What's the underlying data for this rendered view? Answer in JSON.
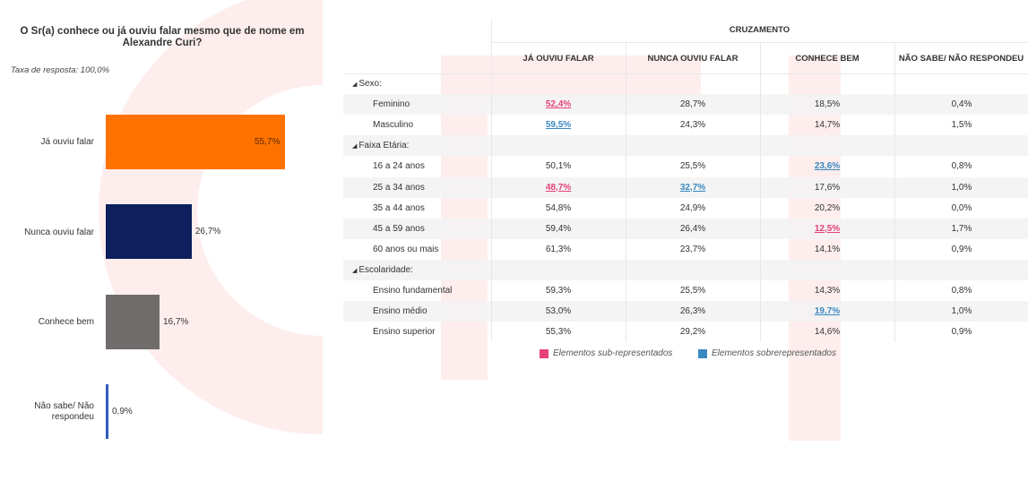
{
  "question": "O Sr(a) conhece ou já ouviu falar mesmo que de nome em Alexandre Curi?",
  "response_rate": "Taxa de resposta: 100,0%",
  "colors": {
    "ja_ouviu": "#ff7200",
    "nunca_ouviu": "#0d1f5c",
    "conhece_bem": "#706c6c",
    "nao_sabe": "#2f5cbf",
    "under": "#e5407a",
    "over": "#3a88c0"
  },
  "chart_data": {
    "type": "bar",
    "orientation": "horizontal",
    "categories": [
      "Já ouviu falar",
      "Nunca ouviu falar",
      "Conhece bem",
      "Não sabe/ Não respondeu"
    ],
    "values": [
      55.7,
      26.7,
      16.7,
      0.9
    ],
    "value_labels": [
      "55,7%",
      "26,7%",
      "16,7%",
      "0,9%"
    ],
    "xlim": [
      0,
      100
    ],
    "grid": false
  },
  "table": {
    "title": "CRUZAMENTO",
    "columns": [
      "JÁ OUVIU FALAR",
      "NUNCA OUVIU FALAR",
      "CONHECE BEM",
      "NÃO SABE/ NÃO RESPONDEU"
    ],
    "groups": [
      {
        "name": "Sexo:",
        "rows": [
          {
            "label": "Feminino",
            "cells": [
              {
                "v": "52,4%",
                "flag": "under"
              },
              {
                "v": "28,7%"
              },
              {
                "v": "18,5%"
              },
              {
                "v": "0,4%"
              }
            ]
          },
          {
            "label": "Masculino",
            "cells": [
              {
                "v": "59,5%",
                "flag": "over"
              },
              {
                "v": "24,3%"
              },
              {
                "v": "14,7%"
              },
              {
                "v": "1,5%"
              }
            ]
          }
        ]
      },
      {
        "name": "Faixa Etária:",
        "rows": [
          {
            "label": "16 a 24 anos",
            "cells": [
              {
                "v": "50,1%"
              },
              {
                "v": "25,5%"
              },
              {
                "v": "23,6%",
                "flag": "over"
              },
              {
                "v": "0,8%"
              }
            ]
          },
          {
            "label": "25 a 34 anos",
            "cells": [
              {
                "v": "48,7%",
                "flag": "under"
              },
              {
                "v": "32,7%",
                "flag": "over"
              },
              {
                "v": "17,6%"
              },
              {
                "v": "1,0%"
              }
            ]
          },
          {
            "label": "35 a 44 anos",
            "cells": [
              {
                "v": "54,8%"
              },
              {
                "v": "24,9%"
              },
              {
                "v": "20,2%"
              },
              {
                "v": "0,0%"
              }
            ]
          },
          {
            "label": "45 a 59 anos",
            "cells": [
              {
                "v": "59,4%"
              },
              {
                "v": "26,4%"
              },
              {
                "v": "12,5%",
                "flag": "under"
              },
              {
                "v": "1,7%"
              }
            ]
          },
          {
            "label": "60 anos ou mais",
            "cells": [
              {
                "v": "61,3%"
              },
              {
                "v": "23,7%"
              },
              {
                "v": "14,1%"
              },
              {
                "v": "0,9%"
              }
            ]
          }
        ]
      },
      {
        "name": "Escolaridade:",
        "rows": [
          {
            "label": "Ensino fundamental",
            "cells": [
              {
                "v": "59,3%"
              },
              {
                "v": "25,5%"
              },
              {
                "v": "14,3%"
              },
              {
                "v": "0,8%"
              }
            ]
          },
          {
            "label": "Ensino médio",
            "cells": [
              {
                "v": "53,0%"
              },
              {
                "v": "26,3%"
              },
              {
                "v": "19,7%",
                "flag": "over"
              },
              {
                "v": "1,0%"
              }
            ]
          },
          {
            "label": "Ensino superior",
            "cells": [
              {
                "v": "55,3%"
              },
              {
                "v": "29,2%"
              },
              {
                "v": "14,6%"
              },
              {
                "v": "0,9%"
              }
            ]
          }
        ]
      }
    ]
  },
  "legend": {
    "under_label": "Elementos sub-representados",
    "over_label": "Elementos sobrerepresentados"
  }
}
